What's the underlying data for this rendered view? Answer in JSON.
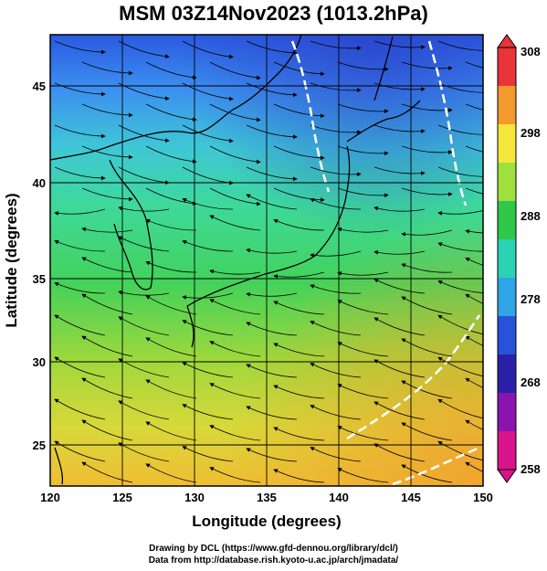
{
  "title": "MSM 03Z14Nov2023 (1013.2hPa)",
  "axes": {
    "xlabel": "Longitude (degrees)",
    "ylabel": "Latitude  (degrees)",
    "xticks": [
      "120",
      "125",
      "130",
      "135",
      "140",
      "145",
      "150"
    ],
    "yticks": [
      "25",
      "30",
      "35",
      "40",
      "45"
    ]
  },
  "colorbar": {
    "ticks": [
      "308",
      "298",
      "288",
      "278",
      "268",
      "258"
    ],
    "colors": [
      "#e8343a",
      "#f29a2e",
      "#f5e63b",
      "#9ee03c",
      "#2fc84a",
      "#2bd3b5",
      "#2fa5e8",
      "#2a52d8",
      "#2b1fa8",
      "#8a14b0",
      "#d8148c"
    ]
  },
  "footer": {
    "line1": "Drawing by DCL (https://www.gfd-dennou.org/library/dcl/)",
    "line2": "Data from http://database.rish.kyoto-u.ac.jp/arch/jmadata/"
  },
  "chart_data": {
    "type": "heatmap",
    "title": "MSM 03Z14Nov2023 (1013.2hPa)",
    "xlabel": "Longitude (degrees)",
    "ylabel": "Latitude  (degrees)",
    "xlim": [
      120,
      150
    ],
    "ylim": [
      22.4,
      47.6
    ],
    "color_range": [
      258,
      308
    ],
    "colorbar_ticks": [
      258,
      268,
      278,
      288,
      298,
      308
    ],
    "grid": true,
    "legend_position": "right",
    "overlay": "streamlines"
  }
}
